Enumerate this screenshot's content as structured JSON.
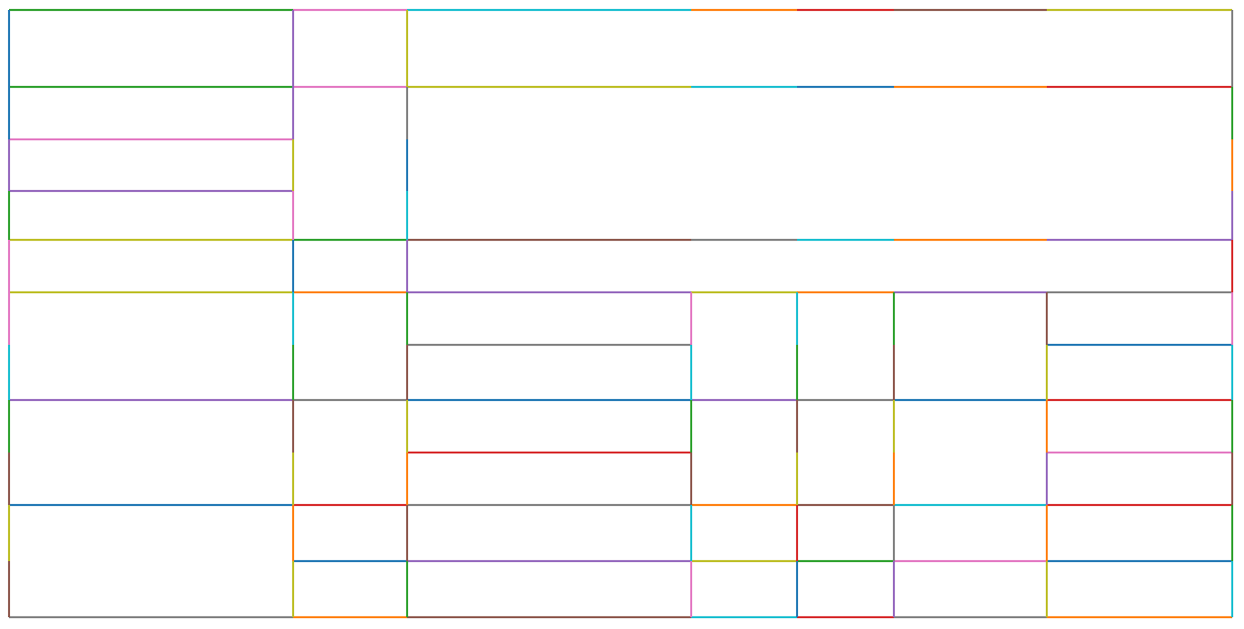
{
  "diagram": {
    "background": "#ffffff",
    "palette": {
      "blue": "#1f77b4",
      "orange": "#ff7f0e",
      "green": "#2ca02c",
      "red": "#d62728",
      "purple": "#9467bd",
      "brown": "#8c564b",
      "pink": "#e377c2",
      "gray": "#7f7f7f",
      "olive": "#bcbd22",
      "cyan": "#17becf"
    }
  }
}
